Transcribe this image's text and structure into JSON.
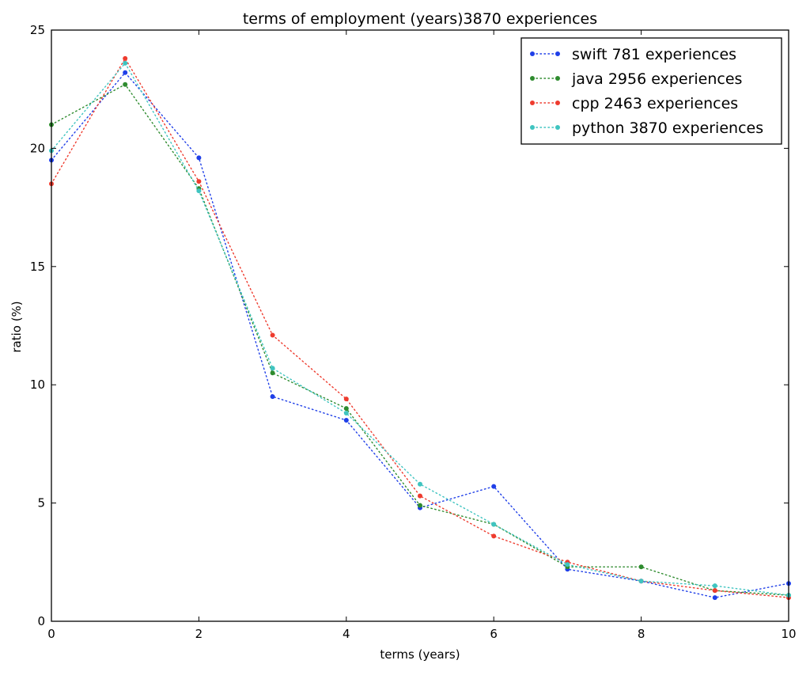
{
  "chart_data": {
    "type": "line",
    "title": "terms of employment (years)3870 experiences",
    "xlabel": "terms (years)",
    "ylabel": "ratio (%)",
    "xlim": [
      0,
      10
    ],
    "ylim": [
      0,
      25
    ],
    "x_ticks": [
      "0",
      "2",
      "4",
      "6",
      "8",
      "10"
    ],
    "y_ticks": [
      "0",
      "5",
      "10",
      "15",
      "20",
      "25"
    ],
    "grid": false,
    "legend_position": "top-right",
    "line_style": "dotted with point markers",
    "x": [
      0,
      1,
      2,
      3,
      4,
      5,
      6,
      7,
      8,
      9,
      10
    ],
    "series": [
      {
        "name": "swift 781 experiences",
        "color": "#1f3fe8",
        "values": [
          19.5,
          23.2,
          19.6,
          9.5,
          8.5,
          4.8,
          5.7,
          2.2,
          1.7,
          1.0,
          1.6
        ]
      },
      {
        "name": "java 2956 experiences",
        "color": "#2e8b2e",
        "values": [
          21.0,
          22.7,
          18.3,
          10.5,
          9.0,
          4.9,
          4.1,
          2.3,
          2.3,
          1.3,
          1.1
        ]
      },
      {
        "name": "cpp 2463 experiences",
        "color": "#ee3b2e",
        "values": [
          18.5,
          23.8,
          18.6,
          12.1,
          9.4,
          5.3,
          3.6,
          2.5,
          1.7,
          1.3,
          1.0
        ]
      },
      {
        "name": "python 3870 experiences",
        "color": "#3fc4c0",
        "values": [
          19.9,
          23.6,
          18.2,
          10.7,
          8.8,
          5.8,
          4.1,
          2.4,
          1.7,
          1.5,
          1.1
        ]
      }
    ]
  }
}
